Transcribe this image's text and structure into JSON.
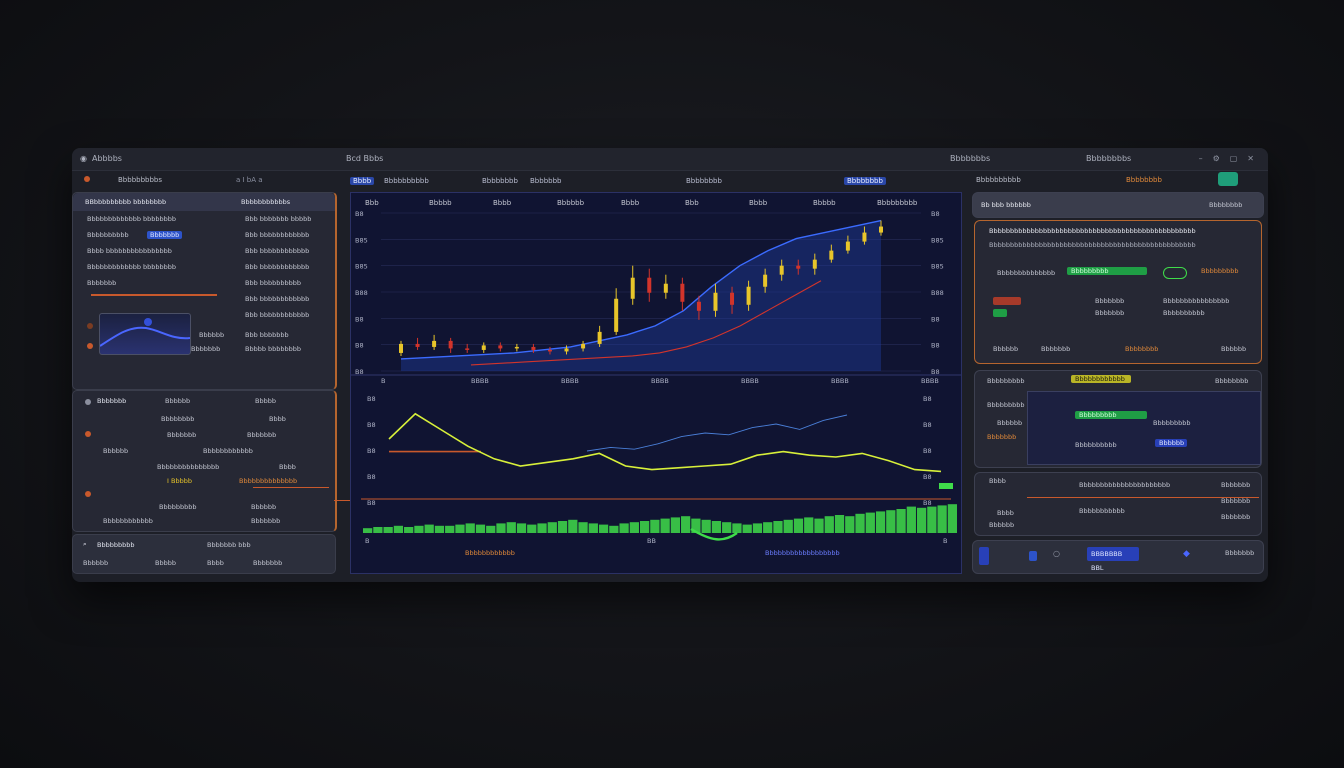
{
  "window": {
    "title_left": "Abbbbs",
    "title_center": "Bcd Bbbs",
    "title_right": "Bbbbbbbs",
    "title_right2": "Bbbbbbbbs"
  },
  "left": {
    "header": "Bbbbbbbbbs",
    "header_controls": "a  I  bA  a",
    "top_card": {
      "title": "BBbbbbbbbbb bbbbbbbb",
      "title_right": "Bbbbbbbbbbbs",
      "rows": [
        {
          "a": "Bbbbbbbbbbbbb bbbbbbbb",
          "b": "Bbb bbbbbbb bbbbb"
        },
        {
          "a": "Bbbbbbbbbb",
          "hl": "Bbbbbbb",
          "b": "Bbb bbbbbbbbbbbb"
        },
        {
          "a": "Bbbb bbbbbbbbbbbbbbbb",
          "b": "Bbb bbbbbbbbbbbb"
        },
        {
          "a": "Bbbbbbbbbbbbb bbbbbbbb",
          "b": "Bbb bbbbbbbbbbbb"
        },
        {
          "a": "Bbbbbbb",
          "b": "Bbb bbbbbbbbbb"
        },
        {
          "a": "",
          "b": "Bbb bbbbbbbbbbbb"
        },
        {
          "a": "",
          "b": "Bbb bbbbbbbbbbbb"
        },
        {
          "a": "Bbbbbb",
          "b": "Bbb bbbbbbb"
        },
        {
          "a": "Bbbbbbb",
          "b": "Bbbbb bbbbbbbb"
        }
      ]
    },
    "mid_card": {
      "title": "Bbbbbbb",
      "title_b": "Bbbbbb",
      "title_c": "Bbbbb",
      "rows": [
        {
          "a": "Bbbbbbbb",
          "b": "Bbbb"
        },
        {
          "a": "Bbbbbbb",
          "b": "Bbbbbbb"
        },
        {
          "a": "Bbbbbb",
          "b": "Bbbbbbbbbbbb"
        },
        {
          "a": "Bbbbbbbbbbbbbbb",
          "b": "Bbbb"
        },
        {
          "a": "I Bbbbb",
          "b": "Bbbbbbbbbbbbbb"
        },
        {
          "a": "Bbbbbbbbb",
          "b": "Bbbbbb"
        },
        {
          "a": "Bbbbbbbbbbbb",
          "b": "Bbbbbbb"
        }
      ]
    },
    "footer": {
      "label": "Bbbbbbbbb",
      "label_right": "Bbbbbbb bbb",
      "row2_a": "Bbbbbb",
      "row2_b": "Bbbbb",
      "row2_c": "Bbbb",
      "row2_d": "Bbbbbbb"
    }
  },
  "center": {
    "tabs": [
      "Bbbb",
      "Bbbbbbbbbb",
      "Bbbbbbbb",
      "Bbbbbbb",
      "Bbbbbbbb",
      "Bbbbbbbb"
    ],
    "tab_active": "Bbbb",
    "chart_header": [
      "Bbb",
      "Bbbbb",
      "Bbbb",
      "Bbbbbb",
      "Bbbb",
      "Bbb",
      "Bbbb",
      "Bbbbb",
      "Bbbbbbbbb"
    ],
    "footer_left": "Bbbbbbbbbbbb",
    "footer_right": "Bbbbbbbbbbbbbbbbbb",
    "y_ticks_top": [
      "B8",
      "B85",
      "B85",
      "B88",
      "B8",
      "B8",
      "B8"
    ],
    "x_ticks_top": [
      "B",
      "BBBB",
      "BBBB",
      "BBBB",
      "BBBB",
      "BBBB",
      "BBBB"
    ],
    "y_ticks_bottom": [
      "B8",
      "B8",
      "B8",
      "B8",
      "B8"
    ],
    "x_ticks_bottom": [
      "B",
      "BB",
      "B"
    ]
  },
  "chart_data": [
    {
      "type": "line",
      "title": "",
      "xlabel": "",
      "ylabel": "",
      "candles": [
        {
          "o": 12,
          "c": 18,
          "h": 20,
          "l": 10
        },
        {
          "o": 18,
          "c": 16,
          "h": 22,
          "l": 14
        },
        {
          "o": 16,
          "c": 20,
          "h": 24,
          "l": 14
        },
        {
          "o": 20,
          "c": 15,
          "h": 22,
          "l": 12
        },
        {
          "o": 15,
          "c": 14,
          "h": 18,
          "l": 12
        },
        {
          "o": 14,
          "c": 17,
          "h": 19,
          "l": 12
        },
        {
          "o": 17,
          "c": 15,
          "h": 19,
          "l": 13
        },
        {
          "o": 15,
          "c": 16,
          "h": 18,
          "l": 13
        },
        {
          "o": 16,
          "c": 14,
          "h": 18,
          "l": 12
        },
        {
          "o": 14,
          "c": 13,
          "h": 16,
          "l": 11
        },
        {
          "o": 13,
          "c": 15,
          "h": 17,
          "l": 11
        },
        {
          "o": 15,
          "c": 18,
          "h": 20,
          "l": 13
        },
        {
          "o": 18,
          "c": 26,
          "h": 30,
          "l": 16
        },
        {
          "o": 26,
          "c": 48,
          "h": 55,
          "l": 24
        },
        {
          "o": 48,
          "c": 62,
          "h": 70,
          "l": 44
        },
        {
          "o": 62,
          "c": 52,
          "h": 68,
          "l": 46
        },
        {
          "o": 52,
          "c": 58,
          "h": 64,
          "l": 48
        },
        {
          "o": 58,
          "c": 46,
          "h": 62,
          "l": 40
        },
        {
          "o": 46,
          "c": 40,
          "h": 50,
          "l": 34
        },
        {
          "o": 40,
          "c": 52,
          "h": 58,
          "l": 36
        },
        {
          "o": 52,
          "c": 44,
          "h": 56,
          "l": 38
        },
        {
          "o": 44,
          "c": 56,
          "h": 60,
          "l": 40
        },
        {
          "o": 56,
          "c": 64,
          "h": 68,
          "l": 52
        },
        {
          "o": 64,
          "c": 70,
          "h": 74,
          "l": 60
        },
        {
          "o": 70,
          "c": 68,
          "h": 74,
          "l": 64
        },
        {
          "o": 68,
          "c": 74,
          "h": 78,
          "l": 64
        },
        {
          "o": 74,
          "c": 80,
          "h": 84,
          "l": 72
        },
        {
          "o": 80,
          "c": 86,
          "h": 90,
          "l": 78
        },
        {
          "o": 86,
          "c": 92,
          "h": 96,
          "l": 84
        },
        {
          "o": 92,
          "c": 96,
          "h": 100,
          "l": 90
        }
      ],
      "series": [
        {
          "values": [
            8,
            9,
            10,
            11,
            12,
            14,
            16,
            20,
            24,
            30,
            40,
            56,
            70,
            80,
            88,
            92,
            96,
            100
          ]
        },
        {
          "values": [
            4,
            5,
            6,
            7,
            8,
            9,
            10,
            12,
            16,
            22,
            30,
            40,
            50,
            60
          ]
        }
      ]
    },
    {
      "type": "line",
      "title": "",
      "xlabel": "",
      "ylabel": "",
      "series": [
        {
          "values": [
            60,
            88,
            70,
            52,
            38,
            30,
            34,
            38,
            44,
            30,
            26,
            28,
            30,
            32,
            42,
            46,
            42,
            40,
            44,
            36,
            26,
            24
          ]
        },
        {
          "values": [
            40,
            44,
            42,
            48,
            56,
            60,
            58,
            66,
            70,
            64,
            74,
            80
          ]
        },
        {
          "values": [
            46,
            46,
            46,
            46,
            46,
            46
          ]
        },
        {
          "values": [
            18,
            18,
            18,
            18,
            18,
            18,
            18,
            18,
            18,
            18,
            18,
            18,
            18,
            18,
            18,
            18,
            18,
            18,
            18,
            18,
            18,
            18
          ]
        }
      ],
      "volume": [
        4,
        5,
        5,
        6,
        5,
        6,
        7,
        6,
        6,
        7,
        8,
        7,
        6,
        8,
        9,
        8,
        7,
        8,
        9,
        10,
        11,
        9,
        8,
        7,
        6,
        8,
        9,
        10,
        11,
        12,
        13,
        14,
        12,
        11,
        10,
        9,
        8,
        7,
        8,
        9,
        10,
        11,
        12,
        13,
        12,
        14,
        15,
        14,
        16,
        17,
        18,
        19,
        20,
        22,
        21,
        22,
        23,
        24
      ]
    }
  ],
  "right": {
    "header": "Bbbbbbbbbb",
    "header_b": "Bbbbbbbb",
    "top_bar_title": "Bb bbb bbbbbb",
    "top_bar_right": "Bbbbbbbb",
    "card1": {
      "title": "Bbbbbbbbbbbbbbbbbbbbbbbbbbbbbbbbbbbbbbbbbbbbbbbbbb",
      "sub": "Bbbbbbbbbbbbbbbbbbbbbbbbbbbbbbbbbbbbbbbbbbbbbbbbbb",
      "r1_a": "Bbbbbbbbbbbbbb",
      "r1_green": "Bbbbbbbbb",
      "r1_b": "Bbbbbbbbb",
      "r2_a": "Bbbbbbb",
      "r2_b": "Bbbbbbbbbbbbbbbb",
      "r3_a": "Bbbbbbb",
      "r3_b": "Bbbbbbbbbb",
      "foot_a": "Bbbbbb",
      "foot_b": "Bbbbbbb",
      "foot_c": "Bbbbbbbb",
      "foot_d": "Bbbbbb"
    },
    "card2": {
      "title": "Bbbbbbbbb",
      "yellow": "Bbbbbbbbbbbb",
      "right": "Bbbbbbbb",
      "rows": [
        "Bbbbbbbbb",
        "Bbbbbb",
        "Bbbbbbbbb",
        "Bbbbbbb"
      ],
      "green": "Bbbbbbbbb",
      "blue": "Bbbbbb",
      "footer": "Bbbbbbbbbb"
    },
    "card3": {
      "title": "Bbbbbbbbbbbbbbbbbbbbbb",
      "sub": "Bbbbbbbbbbb",
      "left_rows": [
        "Bbbb",
        "Bbbb",
        "Bbbbbb"
      ],
      "right_rows": [
        "Bbbbbbb",
        "Bbbbbbb",
        "Bbbbbbb"
      ]
    },
    "footer": {
      "button": "BBBBBBB BBL",
      "right": "Bbbbbbb"
    }
  },
  "colors": {
    "accent_blue": "#2d53c9",
    "bull": "#e8c52a",
    "bear": "#d2342b",
    "green": "#3fdc4a",
    "orange": "#c8592c",
    "chart_bg": "#101432"
  }
}
